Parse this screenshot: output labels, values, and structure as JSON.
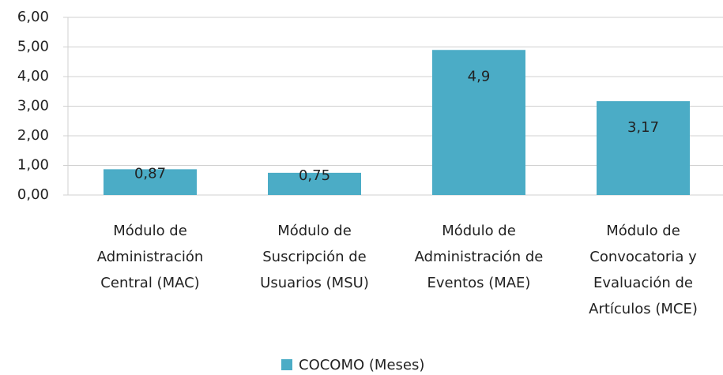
{
  "chart_data": {
    "type": "bar",
    "categories": [
      "Módulo de Administración Central (MAC)",
      "Módulo de Suscripción de Usuarios (MSU)",
      "Módulo de Administración de Eventos (MAE)",
      "Módulo de Convocatoria y Evaluación de Artículos (MCE)"
    ],
    "series": [
      {
        "name": "COCOMO (Meses)",
        "color": "#4bacc6",
        "values": [
          0.87,
          0.75,
          4.9,
          3.17
        ],
        "value_labels": [
          "0,87",
          "0,75",
          "4,9",
          "3,17"
        ]
      }
    ],
    "ylim": [
      0,
      6
    ],
    "yticks": [
      {
        "value": 0,
        "label": "0,00"
      },
      {
        "value": 1,
        "label": "1,00"
      },
      {
        "value": 2,
        "label": "2,00"
      },
      {
        "value": 3,
        "label": "3,00"
      },
      {
        "value": 4,
        "label": "4,00"
      },
      {
        "value": 5,
        "label": "5,00"
      },
      {
        "value": 6,
        "label": "6,00"
      }
    ],
    "grid": true,
    "legend": "bottom"
  }
}
